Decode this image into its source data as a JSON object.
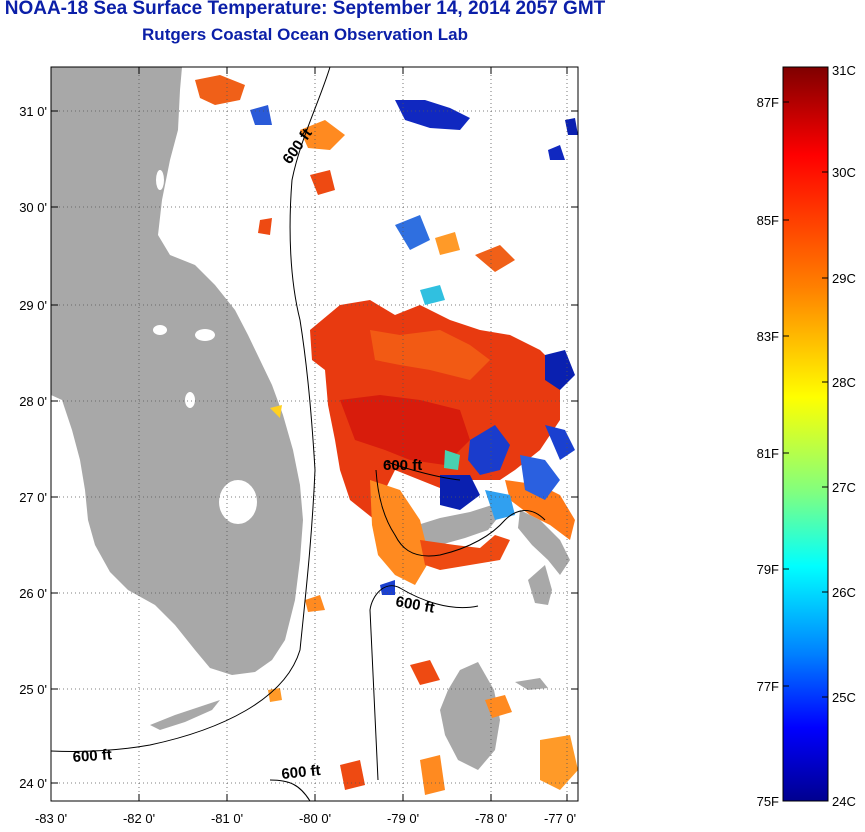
{
  "header": {
    "title": "NOAA-18 Sea Surface Temperature:  September 14, 2014 2057 GMT",
    "subtitle": "Rutgers Coastal Ocean Observation Lab"
  },
  "map": {
    "lat_labels": [
      "31 0'",
      "30 0'",
      "29 0'",
      "28 0'",
      "27 0'",
      "26 0'",
      "25 0'",
      "24 0'"
    ],
    "lon_labels": [
      "-83 0'",
      "-82 0'",
      "-81 0'",
      "-80 0'",
      "-79 0'",
      "-78 0'",
      "-77 0'"
    ],
    "contour_labels": [
      "600 ft",
      "600 ft",
      "600 ft",
      "600 ft",
      "600 ft"
    ],
    "land_color": "#a8a8a8",
    "background_color": "#ffffff"
  },
  "colorbar": {
    "celsius_labels": [
      "31C",
      "30C",
      "29C",
      "28C",
      "27C",
      "26C",
      "25C",
      "24C"
    ],
    "fahrenheit_labels": [
      "87F",
      "85F",
      "83F",
      "81F",
      "79F",
      "77F",
      "75F"
    ],
    "colors": [
      "#7f0000",
      "#ff0000",
      "#ff8000",
      "#ffff00",
      "#80ff80",
      "#00ffff",
      "#0080ff",
      "#0000ff",
      "#00008f"
    ]
  }
}
